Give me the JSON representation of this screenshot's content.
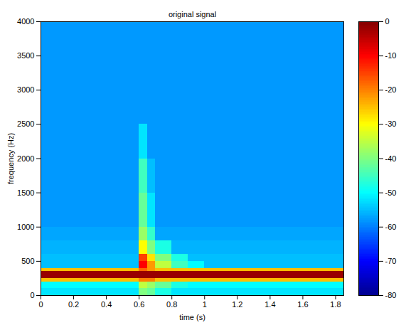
{
  "chart_data": {
    "type": "heatmap",
    "title": "original signal",
    "x_label": "time (s)",
    "y_label": "frequency (Hz)",
    "xlim": [
      0,
      1.85
    ],
    "ylim": [
      0,
      4000
    ],
    "xticks": [
      0,
      0.2,
      0.4,
      0.6,
      0.8,
      1,
      1.2,
      1.4,
      1.6,
      1.8
    ],
    "yticks": [
      0,
      500,
      1000,
      1500,
      2000,
      2500,
      3000,
      3500,
      4000
    ],
    "x_edges": [
      0,
      0.2,
      0.4,
      0.6,
      0.65,
      0.7,
      0.8,
      0.9,
      1.0,
      1.2,
      1.4,
      1.6,
      1.85
    ],
    "y_edges": [
      0,
      100,
      200,
      250,
      350,
      400,
      500,
      600,
      800,
      1000,
      1500,
      2000,
      2500,
      3000,
      3500,
      4000
    ],
    "cells": [
      [
        -52,
        -52,
        -52,
        -40,
        -42,
        -48,
        -52,
        -52,
        -52,
        -52,
        -52,
        -52
      ],
      [
        -50,
        -50,
        -50,
        -35,
        -38,
        -42,
        -48,
        -50,
        -50,
        -50,
        -50,
        -50
      ],
      [
        -25,
        -25,
        -25,
        -20,
        -20,
        -25,
        -25,
        -25,
        -25,
        -25,
        -25,
        -25
      ],
      [
        -2,
        -2,
        -2,
        -2,
        -2,
        -2,
        -2,
        -2,
        -2,
        -2,
        -2,
        -2
      ],
      [
        -25,
        -25,
        -25,
        -18,
        -22,
        -25,
        -25,
        -25,
        -25,
        -25,
        -25,
        -25
      ],
      [
        -55,
        -55,
        -55,
        -10,
        -22,
        -35,
        -45,
        -50,
        -55,
        -55,
        -55,
        -55
      ],
      [
        -55,
        -55,
        -55,
        -15,
        -28,
        -40,
        -48,
        -55,
        -55,
        -55,
        -55,
        -55
      ],
      [
        -56,
        -56,
        -56,
        -30,
        -40,
        -48,
        -56,
        -56,
        -56,
        -56,
        -56,
        -56
      ],
      [
        -57,
        -57,
        -57,
        -38,
        -46,
        -57,
        -57,
        -57,
        -57,
        -57,
        -57,
        -57
      ],
      [
        -58,
        -58,
        -58,
        -42,
        -52,
        -58,
        -58,
        -58,
        -58,
        -58,
        -58,
        -58
      ],
      [
        -58,
        -58,
        -58,
        -45,
        -55,
        -58,
        -58,
        -58,
        -58,
        -58,
        -58,
        -58
      ],
      [
        -58,
        -58,
        -58,
        -52,
        -58,
        -58,
        -58,
        -58,
        -58,
        -58,
        -58,
        -58
      ],
      [
        -58,
        -58,
        -58,
        -58,
        -58,
        -58,
        -58,
        -58,
        -58,
        -58,
        -58,
        -58
      ],
      [
        -58,
        -58,
        -58,
        -58,
        -58,
        -58,
        -58,
        -58,
        -58,
        -58,
        -58,
        -58
      ],
      [
        -58,
        -58,
        -58,
        -58,
        -58,
        -58,
        -58,
        -58,
        -58,
        -58,
        -58,
        -58
      ]
    ],
    "colorbar": {
      "lim": [
        -80,
        0
      ],
      "ticks": [
        0,
        -10,
        -20,
        -30,
        -40,
        -50,
        -60,
        -70,
        -80
      ]
    }
  }
}
